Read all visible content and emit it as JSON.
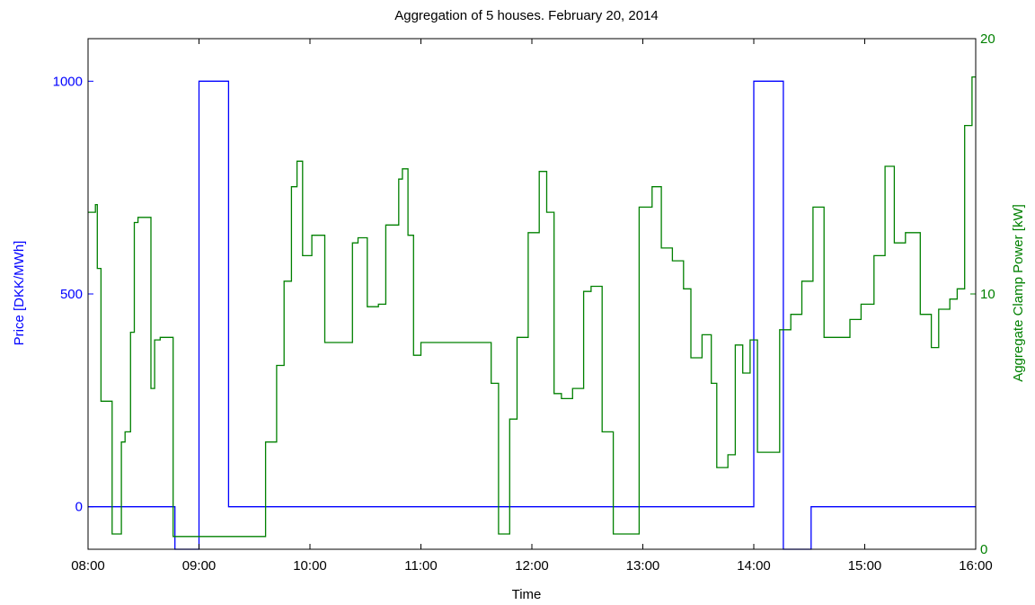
{
  "chart_data": {
    "type": "line",
    "title": "Aggregation of 5 houses. February 20, 2014",
    "xlabel": "Time",
    "ylabel_left": "Price [DKK/MWh]",
    "ylabel_right": "Aggregate Clamp Power [kW]",
    "x_ticks": [
      "08:00",
      "09:00",
      "10:00",
      "11:00",
      "12:00",
      "13:00",
      "14:00",
      "15:00",
      "16:00"
    ],
    "x_range_hours": [
      8,
      16
    ],
    "y_left_range": [
      -100,
      1100
    ],
    "y_left_ticks": [
      "0",
      "500",
      "1000"
    ],
    "y_left_tick_values": [
      0,
      500,
      1000
    ],
    "y_right_range": [
      0,
      20
    ],
    "y_right_ticks": [
      "0",
      "10",
      "20"
    ],
    "y_right_tick_values": [
      0,
      10,
      20
    ],
    "colors": {
      "price": "#0000ff",
      "power": "#008000",
      "axes": "#000000"
    },
    "series": [
      {
        "axis": "left",
        "step": true,
        "x": [
          "08:00",
          "08:47",
          "08:47",
          "09:00",
          "09:00",
          "09:16",
          "09:16",
          "14:00",
          "14:00",
          "14:16",
          "14:16",
          "14:31",
          "14:31",
          "16:00"
        ],
        "values": [
          0,
          0,
          -100,
          -100,
          1000,
          1000,
          0,
          0,
          1000,
          1000,
          -100,
          -100,
          0,
          0
        ]
      },
      {
        "axis": "right",
        "step": true,
        "x": [
          "08:00",
          "08:04",
          "08:05",
          "08:07",
          "08:13",
          "08:16",
          "08:18",
          "08:20",
          "08:23",
          "08:25",
          "08:27",
          "08:30",
          "08:34",
          "08:36",
          "08:39",
          "08:40",
          "08:46",
          "08:52",
          "08:56",
          "09:03",
          "09:10",
          "09:20",
          "09:30",
          "09:36",
          "09:42",
          "09:46",
          "09:50",
          "09:53",
          "09:56",
          "10:01",
          "10:08",
          "10:10",
          "10:15",
          "10:23",
          "10:26",
          "10:31",
          "10:37",
          "10:41",
          "10:48",
          "10:50",
          "10:53",
          "10:56",
          "11:00",
          "11:10",
          "11:20",
          "11:30",
          "11:38",
          "11:42",
          "11:48",
          "11:52",
          "11:58",
          "12:04",
          "12:08",
          "12:12",
          "12:16",
          "12:22",
          "12:28",
          "12:32",
          "12:38",
          "12:44",
          "12:52",
          "12:58",
          "13:05",
          "13:10",
          "13:16",
          "13:22",
          "13:26",
          "13:32",
          "13:37",
          "13:40",
          "13:46",
          "13:50",
          "13:54",
          "13:58",
          "14:02",
          "14:06",
          "14:14",
          "14:20",
          "14:26",
          "14:32",
          "14:38",
          "14:44",
          "14:52",
          "14:58",
          "15:05",
          "15:11",
          "15:16",
          "15:22",
          "15:30",
          "15:36",
          "15:40",
          "15:46",
          "15:50",
          "15:54",
          "15:58"
        ],
        "values": [
          13.2,
          13.5,
          11.0,
          5.8,
          0.6,
          0.6,
          4.2,
          4.6,
          8.5,
          12.8,
          13.0,
          13.0,
          6.3,
          8.2,
          8.3,
          8.3,
          0.5,
          0.5,
          0.5,
          0.5,
          0.5,
          0.5,
          0.5,
          4.2,
          7.2,
          10.5,
          14.2,
          15.2,
          11.5,
          12.3,
          8.1,
          8.1,
          8.1,
          12.0,
          12.2,
          9.5,
          9.6,
          12.7,
          14.5,
          14.9,
          12.3,
          7.6,
          8.1,
          8.1,
          8.1,
          8.1,
          6.5,
          0.6,
          5.1,
          8.3,
          12.4,
          14.8,
          13.2,
          6.1,
          5.9,
          6.3,
          10.1,
          10.3,
          4.6,
          0.6,
          0.6,
          13.4,
          14.2,
          11.8,
          11.3,
          10.2,
          7.5,
          8.4,
          6.5,
          3.2,
          3.7,
          8.0,
          6.9,
          8.2,
          3.8,
          3.8,
          8.6,
          9.2,
          10.5,
          13.4,
          8.3,
          8.3,
          9.0,
          9.6,
          11.5,
          15.0,
          12.0,
          12.4,
          9.2,
          7.9,
          9.4,
          9.8,
          10.2,
          16.6,
          18.5
        ]
      }
    ]
  }
}
